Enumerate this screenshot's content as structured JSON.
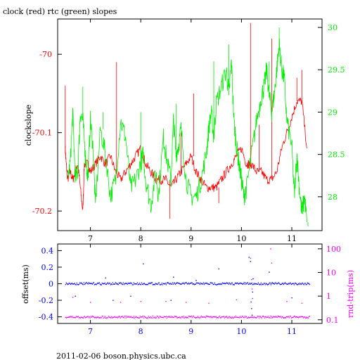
{
  "title": "clock (red) rtc (green) slopes",
  "footer": "2011-02-06 boson.physics.ubc.ca",
  "colors": {
    "clock": "#ff0000",
    "rtc": "#00ee00",
    "offset": "#0000ff",
    "rndtrip": "#ff00ff",
    "frame": "#000000"
  },
  "chart_data": [
    {
      "type": "line",
      "title": "clock (red) rtc (green) slopes",
      "ylabel": "clockslope",
      "ylabel_right": "",
      "xlim": [
        6.35,
        11.6
      ],
      "ylim": [
        -70.225,
        -69.955
      ],
      "ylim_right": [
        27.6,
        30.1
      ],
      "xticks": [
        7,
        8,
        9,
        10,
        11
      ],
      "yticks_left": [
        -70,
        -70.1,
        -70.2
      ],
      "yticks_left_labels": [
        "-70",
        "-70.1",
        "-70.2"
      ],
      "yticks_right": [
        28,
        28.5,
        29,
        29.5,
        30
      ],
      "yticks_right_labels": [
        "28",
        "28.5",
        "29",
        "29.5",
        "30"
      ],
      "series": [
        {
          "axis": "left",
          "color": "#ff0000",
          "points": [
            [
              6.5,
              -70.12
            ],
            [
              6.52,
              -70.14
            ],
            [
              6.55,
              -70.16
            ],
            [
              6.6,
              -70.15
            ],
            [
              6.65,
              -70.16
            ],
            [
              6.7,
              -70.15
            ],
            [
              6.75,
              -70.14
            ],
            [
              6.8,
              -70.17
            ],
            [
              6.85,
              -70.2
            ],
            [
              6.88,
              -70.14
            ],
            [
              6.95,
              -70.14
            ],
            [
              7.0,
              -70.15
            ],
            [
              7.1,
              -70.14
            ],
            [
              7.2,
              -70.13
            ],
            [
              7.3,
              -70.14
            ],
            [
              7.4,
              -70.13
            ],
            [
              7.5,
              -70.15
            ],
            [
              7.6,
              -70.16
            ],
            [
              7.7,
              -70.15
            ],
            [
              7.8,
              -70.14
            ],
            [
              7.9,
              -70.13
            ],
            [
              8.0,
              -70.12
            ],
            [
              8.1,
              -70.14
            ],
            [
              8.2,
              -70.15
            ],
            [
              8.3,
              -70.16
            ],
            [
              8.4,
              -70.16
            ],
            [
              8.5,
              -70.16
            ],
            [
              8.6,
              -70.17
            ],
            [
              8.7,
              -70.16
            ],
            [
              8.8,
              -70.15
            ],
            [
              8.9,
              -70.14
            ],
            [
              9.0,
              -70.13
            ],
            [
              9.1,
              -70.15
            ],
            [
              9.2,
              -70.16
            ],
            [
              9.3,
              -70.17
            ],
            [
              9.4,
              -70.17
            ],
            [
              9.5,
              -70.17
            ],
            [
              9.6,
              -70.16
            ],
            [
              9.7,
              -70.15
            ],
            [
              9.8,
              -70.14
            ],
            [
              9.9,
              -70.13
            ],
            [
              10.0,
              -70.12
            ],
            [
              10.1,
              -70.14
            ],
            [
              10.15,
              -70.14
            ],
            [
              10.2,
              -70.14
            ],
            [
              10.3,
              -70.15
            ],
            [
              10.4,
              -70.15
            ],
            [
              10.5,
              -70.16
            ],
            [
              10.6,
              -70.16
            ],
            [
              10.7,
              -70.15
            ],
            [
              10.8,
              -70.12
            ],
            [
              10.9,
              -70.1
            ],
            [
              11.0,
              -70.08
            ],
            [
              11.1,
              -70.06
            ],
            [
              11.2,
              -70.06
            ],
            [
              11.3,
              -70.12
            ]
          ],
          "spikes": [
            [
              6.5,
              -70.04
            ],
            [
              6.85,
              -70.2
            ],
            [
              7.52,
              -70.01
            ],
            [
              8.58,
              -70.21
            ],
            [
              8.8,
              -70.1
            ],
            [
              9.05,
              -70.05
            ],
            [
              9.55,
              -70.19
            ],
            [
              10.18,
              -69.96
            ],
            [
              10.35,
              -70.09
            ],
            [
              10.6,
              -69.98
            ],
            [
              11.1,
              -70.03
            ],
            [
              11.2,
              -70.02
            ]
          ]
        },
        {
          "axis": "right",
          "color": "#00ee00",
          "points": [
            [
              6.55,
              28.2
            ],
            [
              6.6,
              28.4
            ],
            [
              6.65,
              29.0
            ],
            [
              6.7,
              28.2
            ],
            [
              6.75,
              28.3
            ],
            [
              6.8,
              29.0
            ],
            [
              6.85,
              28.9
            ],
            [
              6.9,
              28.5
            ],
            [
              6.95,
              28.2
            ],
            [
              7.0,
              28.9
            ],
            [
              7.05,
              28.6
            ],
            [
              7.1,
              27.9
            ],
            [
              7.2,
              28.8
            ],
            [
              7.3,
              28.5
            ],
            [
              7.4,
              28.0
            ],
            [
              7.5,
              28.2
            ],
            [
              7.6,
              28.9
            ],
            [
              7.7,
              28.7
            ],
            [
              7.8,
              28.1
            ],
            [
              7.9,
              28.2
            ],
            [
              8.0,
              28.4
            ],
            [
              8.05,
              28.5
            ],
            [
              8.1,
              28.2
            ],
            [
              8.2,
              27.9
            ],
            [
              8.3,
              28.3
            ],
            [
              8.35,
              28.0
            ],
            [
              8.45,
              28.7
            ],
            [
              8.5,
              28.5
            ],
            [
              8.6,
              28.2
            ],
            [
              8.65,
              28.9
            ],
            [
              8.7,
              28.5
            ],
            [
              8.75,
              28.6
            ],
            [
              8.8,
              28.8
            ],
            [
              8.9,
              28.2
            ],
            [
              9.0,
              28.0
            ],
            [
              9.1,
              28.0
            ],
            [
              9.2,
              28.2
            ],
            [
              9.3,
              28.5
            ],
            [
              9.35,
              28.8
            ],
            [
              9.4,
              29.0
            ],
            [
              9.45,
              28.7
            ],
            [
              9.5,
              29.1
            ],
            [
              9.6,
              29.3
            ],
            [
              9.7,
              29.5
            ],
            [
              9.75,
              29.2
            ],
            [
              9.8,
              29.6
            ],
            [
              9.85,
              28.9
            ],
            [
              9.9,
              28.6
            ],
            [
              9.95,
              28.4
            ],
            [
              10.0,
              28.2
            ],
            [
              10.05,
              28.0
            ],
            [
              10.1,
              28.1
            ],
            [
              10.2,
              28.5
            ],
            [
              10.3,
              28.9
            ],
            [
              10.4,
              29.2
            ],
            [
              10.45,
              29.3
            ],
            [
              10.5,
              29.5
            ],
            [
              10.55,
              29.2
            ],
            [
              10.6,
              29.0
            ],
            [
              10.65,
              29.2
            ],
            [
              10.7,
              29.5
            ],
            [
              10.75,
              29.8
            ],
            [
              10.8,
              29.5
            ],
            [
              10.85,
              29.4
            ],
            [
              10.9,
              28.9
            ],
            [
              11.0,
              28.6
            ],
            [
              11.05,
              28.0
            ],
            [
              11.1,
              28.5
            ],
            [
              11.15,
              28.1
            ],
            [
              11.2,
              27.8
            ],
            [
              11.25,
              28.0
            ],
            [
              11.3,
              27.7
            ]
          ],
          "spikes": [
            [
              6.85,
              29.3
            ],
            [
              7.25,
              29.0
            ],
            [
              8.0,
              29.0
            ],
            [
              8.7,
              29.1
            ],
            [
              9.45,
              29.6
            ],
            [
              9.75,
              29.8
            ],
            [
              10.55,
              29.6
            ],
            [
              10.75,
              30.0
            ],
            [
              11.32,
              27.65
            ]
          ]
        }
      ]
    },
    {
      "type": "scatter",
      "ylabel": "offset(ms)",
      "ylabel_right": "rnd-trip(ms)",
      "xlim": [
        6.35,
        11.6
      ],
      "ylim": [
        -0.48,
        0.48
      ],
      "ylim_right_log": [
        0.07,
        160
      ],
      "xticks": [
        7,
        8,
        9,
        10,
        11
      ],
      "yticks_left": [
        0.4,
        0.2,
        0,
        -0.2,
        -0.4
      ],
      "yticks_left_labels": [
        "0.4",
        "0.2",
        "0",
        "-0.2",
        "-0.4"
      ],
      "yticks_right": [
        100,
        10,
        1,
        0.1
      ],
      "yticks_right_labels": [
        "100",
        "10",
        "1",
        "0.1"
      ],
      "series": [
        {
          "axis": "left",
          "color": "#0000ff",
          "baseline": 0.0,
          "x_range": [
            6.5,
            11.35
          ],
          "outliers": [
            [
              6.7,
              -0.15
            ],
            [
              7.3,
              0.07
            ],
            [
              7.45,
              -0.2
            ],
            [
              7.8,
              -0.15
            ],
            [
              8.05,
              0.24
            ],
            [
              8.6,
              -0.2
            ],
            [
              8.65,
              0.08
            ],
            [
              9.1,
              0.04
            ],
            [
              9.55,
              0.18
            ],
            [
              10.15,
              0.32
            ],
            [
              10.18,
              0.27
            ],
            [
              10.2,
              -0.3
            ],
            [
              10.21,
              -0.38
            ],
            [
              10.22,
              -0.1
            ],
            [
              10.23,
              0.06
            ],
            [
              10.19,
              -0.22
            ],
            [
              10.55,
              0.14
            ],
            [
              11.0,
              -0.17
            ]
          ]
        },
        {
          "axis": "right",
          "color": "#ff00ff",
          "baseline": 0.13,
          "x_range": [
            6.5,
            11.35
          ],
          "outliers": [
            [
              6.65,
              0.9
            ],
            [
              7.0,
              0.55
            ],
            [
              7.6,
              0.55
            ],
            [
              8.0,
              0.6
            ],
            [
              8.5,
              0.6
            ],
            [
              8.9,
              0.55
            ],
            [
              9.35,
              0.5
            ],
            [
              9.9,
              0.7
            ],
            [
              10.18,
              40
            ],
            [
              10.2,
              5
            ],
            [
              10.21,
              2
            ],
            [
              10.22,
              0.8
            ],
            [
              10.58,
              100
            ],
            [
              10.6,
              25
            ],
            [
              10.9,
              0.6
            ],
            [
              11.2,
              0.5
            ]
          ]
        }
      ]
    }
  ]
}
